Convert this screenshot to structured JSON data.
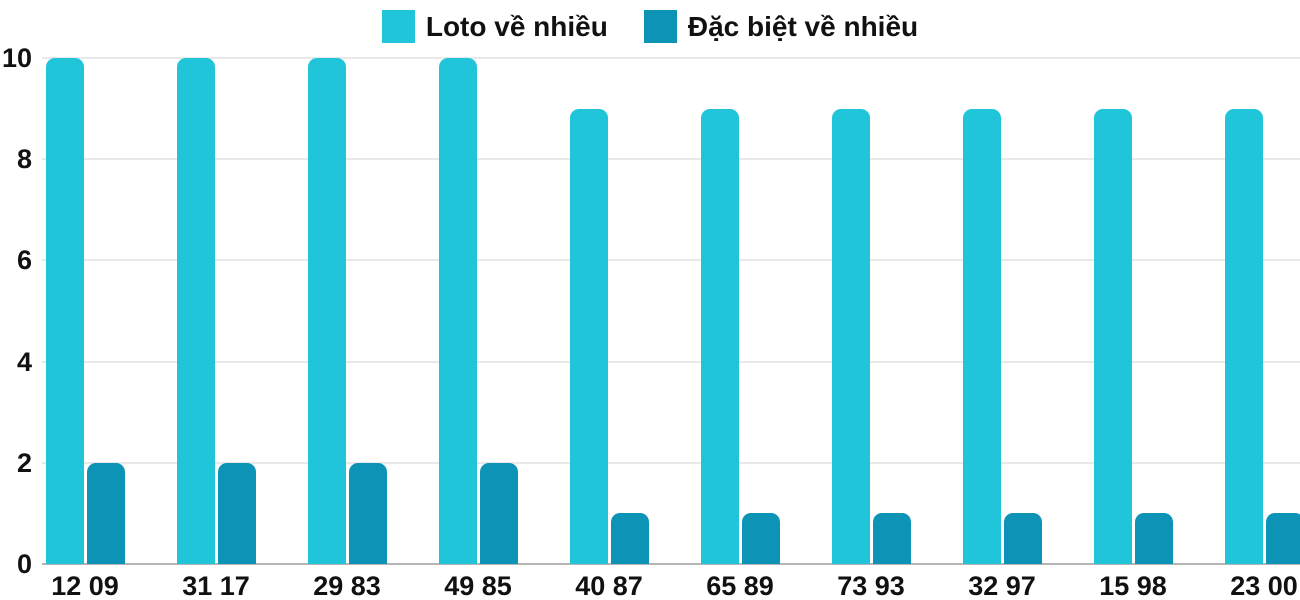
{
  "chart_data": {
    "type": "bar",
    "title": "",
    "xlabel": "",
    "ylabel": "",
    "categories": [
      "12 09",
      "31 17",
      "29 83",
      "49 85",
      "40 87",
      "65 89",
      "73 93",
      "32 97",
      "15 98",
      "23 00"
    ],
    "series": [
      {
        "name": "Loto về nhiều",
        "color": "#20C5DA",
        "values": [
          10,
          10,
          10,
          10,
          9,
          9,
          9,
          9,
          9,
          9
        ]
      },
      {
        "name": "Đặc biệt về nhiều",
        "color": "#0D93B5",
        "values": [
          2,
          2,
          2,
          2,
          1,
          1,
          1,
          1,
          1,
          1
        ]
      }
    ],
    "ylim": [
      0,
      10
    ],
    "yticks": [
      0,
      2,
      4,
      6,
      8,
      10
    ],
    "grid": true,
    "legend_position": "top"
  },
  "colors": {
    "background": "#ffffff",
    "grid": "#e9e9e9",
    "axis_line": "#b5b5b5",
    "text": "#111111"
  }
}
